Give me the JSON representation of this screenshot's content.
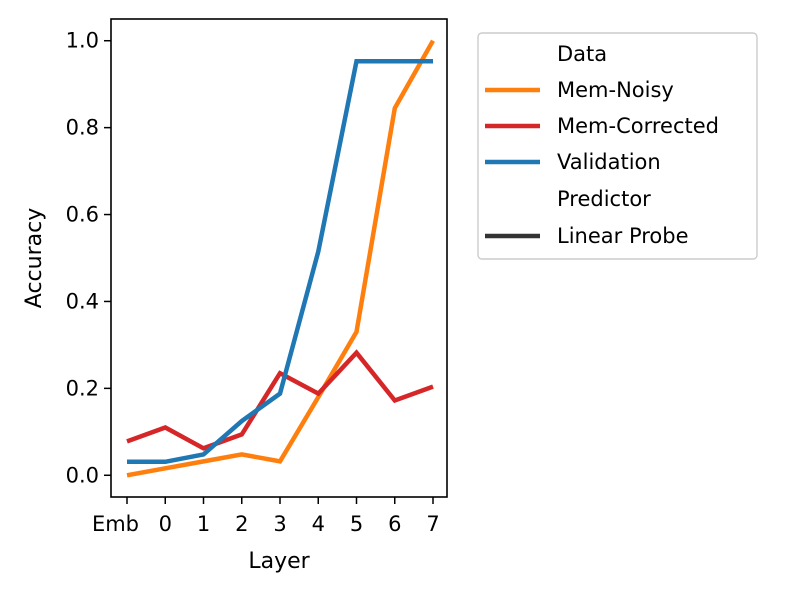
{
  "chart_data": {
    "type": "line",
    "xlabel": "Layer",
    "ylabel": "Accuracy",
    "categories": [
      "Emb",
      "0",
      "1",
      "2",
      "3",
      "4",
      "5",
      "6",
      "7"
    ],
    "yticks": [
      "0.0",
      "0.2",
      "0.4",
      "0.6",
      "0.8",
      "1.0"
    ],
    "ylim": [
      -0.05,
      1.05
    ],
    "series": [
      {
        "name": "Mem-Noisy",
        "color": "#ff7f0e",
        "values": [
          0.0,
          0.016,
          0.032,
          0.048,
          0.032,
          0.18,
          0.33,
          0.845,
          1.0
        ]
      },
      {
        "name": "Mem-Corrected",
        "color": "#d62728",
        "values": [
          0.078,
          0.11,
          0.062,
          0.094,
          0.235,
          0.188,
          0.282,
          0.172,
          0.204
        ]
      },
      {
        "name": "Validation",
        "color": "#1f77b4",
        "values": [
          0.031,
          0.031,
          0.048,
          0.125,
          0.188,
          0.515,
          0.953,
          0.953,
          0.953
        ]
      }
    ],
    "legend": {
      "section1_title": "Data",
      "section2_title": "Predictor",
      "predictor_label": "Linear Probe",
      "predictor_color": "#333333",
      "placement": "outside-right-top"
    }
  }
}
